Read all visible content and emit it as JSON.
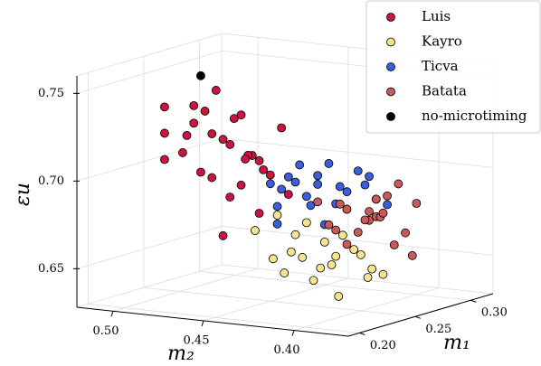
{
  "chart_data": {
    "type": "scatter3d",
    "x_label": "m₁",
    "y_label": "m₂",
    "z_label": "εu",
    "xlim": [
      0.19,
      0.32
    ],
    "ylim": [
      0.37,
      0.52
    ],
    "zlim": [
      0.628,
      0.76
    ],
    "xticks": [
      {
        "value": 0.2,
        "label": "0.20"
      },
      0.25,
      {
        "value": 0.3,
        "label": "0.30"
      }
    ],
    "yticks": [
      {
        "value": 0.5,
        "label": "0.50"
      },
      0.45,
      {
        "value": 0.4,
        "label": "0.40"
      }
    ],
    "zticks": [
      0.65,
      {
        "value": 0.7,
        "label": "0.70"
      },
      0.75
    ],
    "grid": true,
    "legend": "upper right",
    "series": [
      {
        "name": "Luis",
        "color": "#cc1440",
        "x": [
          0.23,
          0.24,
          0.22,
          0.25,
          0.23,
          0.24,
          0.26,
          0.22,
          0.23,
          0.25,
          0.24,
          0.22,
          0.23,
          0.26,
          0.25,
          0.24,
          0.23,
          0.22,
          0.24,
          0.25,
          0.23,
          0.26,
          0.24,
          0.22,
          0.25,
          0.23,
          0.24,
          0.24
        ],
        "y": [
          0.48,
          0.47,
          0.49,
          0.46,
          0.47,
          0.48,
          0.45,
          0.48,
          0.46,
          0.47,
          0.49,
          0.47,
          0.45,
          0.46,
          0.48,
          0.46,
          0.47,
          0.49,
          0.45,
          0.44,
          0.48,
          0.47,
          0.46,
          0.49,
          0.45,
          0.46,
          0.47,
          0.45
        ],
        "z": [
          0.73,
          0.72,
          0.74,
          0.71,
          0.7,
          0.735,
          0.725,
          0.715,
          0.69,
          0.73,
          0.72,
          0.705,
          0.715,
          0.7,
          0.745,
          0.695,
          0.725,
          0.71,
          0.68,
          0.69,
          0.74,
          0.705,
          0.735,
          0.725,
          0.7,
          0.72,
          0.665,
          0.71
        ]
      },
      {
        "name": "Kayro",
        "color": "#f5e58f",
        "x": [
          0.24,
          0.23,
          0.25,
          0.22,
          0.24,
          0.26,
          0.23,
          0.25,
          0.22,
          0.24,
          0.26,
          0.23,
          0.25,
          0.27,
          0.24,
          0.22,
          0.25,
          0.23,
          0.26,
          0.24
        ],
        "y": [
          0.43,
          0.42,
          0.42,
          0.44,
          0.41,
          0.41,
          0.43,
          0.4,
          0.42,
          0.42,
          0.4,
          0.41,
          0.43,
          0.4,
          0.44,
          0.43,
          0.41,
          0.4,
          0.42,
          0.39
        ],
        "z": [
          0.67,
          0.66,
          0.665,
          0.675,
          0.655,
          0.66,
          0.65,
          0.66,
          0.665,
          0.645,
          0.65,
          0.655,
          0.675,
          0.645,
          0.68,
          0.66,
          0.67,
          0.64,
          0.655,
          0.65
        ]
      },
      {
        "name": "Ticva",
        "color": "#3a5fd9",
        "x": [
          0.25,
          0.26,
          0.27,
          0.24,
          0.28,
          0.26,
          0.25,
          0.27,
          0.29,
          0.26,
          0.24,
          0.28,
          0.25,
          0.27,
          0.26,
          0.28,
          0.25,
          0.27,
          0.26,
          0.29,
          0.24,
          0.27
        ],
        "y": [
          0.44,
          0.43,
          0.42,
          0.44,
          0.42,
          0.44,
          0.43,
          0.41,
          0.41,
          0.42,
          0.43,
          0.43,
          0.45,
          0.44,
          0.43,
          0.41,
          0.42,
          0.43,
          0.45,
          0.42,
          0.44,
          0.42
        ],
        "z": [
          0.7,
          0.695,
          0.69,
          0.685,
          0.7,
          0.705,
          0.69,
          0.695,
          0.68,
          0.685,
          0.7,
          0.69,
          0.695,
          0.68,
          0.7,
          0.685,
          0.675,
          0.705,
          0.69,
          0.695,
          0.675,
          0.68
        ]
      },
      {
        "name": "Batata",
        "color": "#c85a5a",
        "x": [
          0.27,
          0.28,
          0.29,
          0.27,
          0.28,
          0.3,
          0.26,
          0.29,
          0.28,
          0.27,
          0.3,
          0.28,
          0.29,
          0.27,
          0.28,
          0.26,
          0.29,
          0.28,
          0.3,
          0.27
        ],
        "y": [
          0.42,
          0.41,
          0.41,
          0.43,
          0.42,
          0.4,
          0.43,
          0.42,
          0.4,
          0.41,
          0.41,
          0.43,
          0.4,
          0.42,
          0.41,
          0.42,
          0.42,
          0.39,
          0.42,
          0.4
        ],
        "z": [
          0.68,
          0.675,
          0.685,
          0.67,
          0.665,
          0.68,
          0.685,
          0.67,
          0.66,
          0.675,
          0.69,
          0.68,
          0.665,
          0.66,
          0.685,
          0.67,
          0.675,
          0.655,
          0.67,
          0.68
        ]
      },
      {
        "name": "no-microtiming",
        "color": "#000000",
        "x": [
          0.22
        ],
        "y": [
          0.47
        ],
        "z": [
          0.76
        ]
      }
    ]
  }
}
